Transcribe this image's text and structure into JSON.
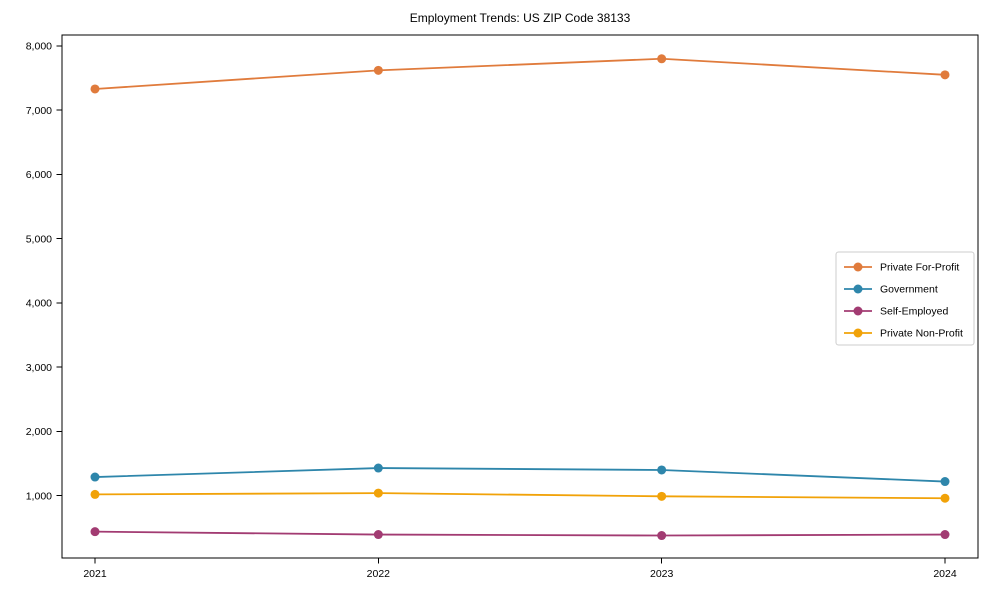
{
  "chart_data": {
    "type": "line",
    "title": "Employment Trends: US ZIP Code 38133",
    "x": [
      2021,
      2022,
      2023,
      2024
    ],
    "series": [
      {
        "name": "Private For-Profit",
        "color": "#E07B3C",
        "values": [
          7330,
          7620,
          7800,
          7550
        ]
      },
      {
        "name": "Government",
        "color": "#2E86AB",
        "values": [
          1290,
          1430,
          1400,
          1220
        ]
      },
      {
        "name": "Self-Employed",
        "color": "#A23B72",
        "values": [
          440,
          395,
          380,
          395
        ]
      },
      {
        "name": "Private Non-Profit",
        "color": "#F1A208",
        "values": [
          1020,
          1040,
          990,
          960
        ]
      }
    ],
    "xlabel": "",
    "ylabel": "",
    "ylim": [
      30,
      8170
    ],
    "yticks": [
      1000,
      2000,
      3000,
      4000,
      5000,
      6000,
      7000,
      8000
    ],
    "ytick_format": "comma",
    "grid": false,
    "legend_position": "center-right",
    "axis_color": "#000000",
    "text_color": "#000000",
    "background_color": "#ffffff",
    "marker": "circle"
  }
}
